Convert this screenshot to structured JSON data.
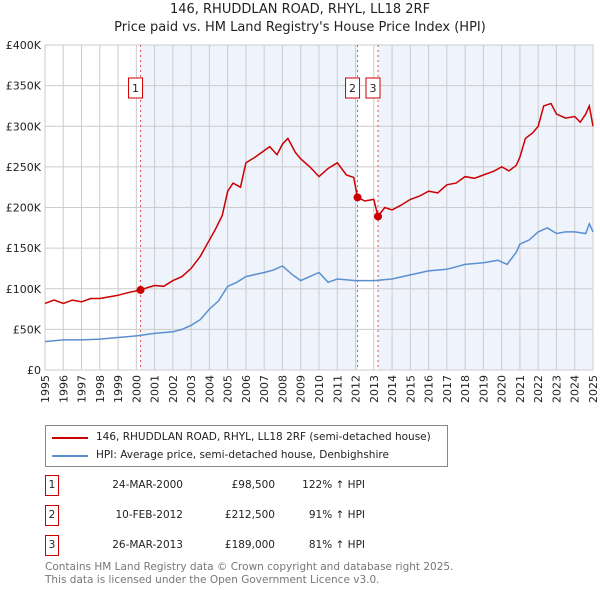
{
  "chart_data": {
    "type": "line",
    "title": "146, RHUDDLAN ROAD, RHYL, LL18 2RF",
    "subtitle": "Price paid vs. HM Land Registry's House Price Index (HPI)",
    "xlim": [
      1995,
      2025
    ],
    "ylim": [
      0,
      400000
    ],
    "x_ticks": [
      "1995",
      "1996",
      "1997",
      "1998",
      "1999",
      "2000",
      "2001",
      "2002",
      "2003",
      "2004",
      "2005",
      "2006",
      "2007",
      "2008",
      "2009",
      "2010",
      "2011",
      "2012",
      "2013",
      "2014",
      "2015",
      "2016",
      "2017",
      "2018",
      "2019",
      "2020",
      "2021",
      "2022",
      "2023",
      "2024",
      "2025"
    ],
    "y_ticks": [
      {
        "v": 0,
        "label": "£0"
      },
      {
        "v": 50000,
        "label": "£50K"
      },
      {
        "v": 100000,
        "label": "£100K"
      },
      {
        "v": 150000,
        "label": "£150K"
      },
      {
        "v": 200000,
        "label": "£200K"
      },
      {
        "v": 250000,
        "label": "£250K"
      },
      {
        "v": 300000,
        "label": "£300K"
      },
      {
        "v": 350000,
        "label": "£350K"
      },
      {
        "v": 400000,
        "label": "£400K"
      }
    ],
    "grid": true,
    "series": [
      {
        "name": "146, RHUDDLAN ROAD, RHYL, LL18 2RF (semi-detached house)",
        "color": "#cc0000",
        "x": [
          1995,
          1995.5,
          1996,
          1996.5,
          1997,
          1997.5,
          1998,
          1998.5,
          1999,
          1999.5,
          2000.23,
          2000.7,
          2001,
          2001.5,
          2002,
          2002.5,
          2003,
          2003.5,
          2004,
          2004.3,
          2004.7,
          2005,
          2005.3,
          2005.7,
          2006,
          2006.5,
          2007,
          2007.3,
          2007.7,
          2008,
          2008.3,
          2008.7,
          2009,
          2009.5,
          2010,
          2010.5,
          2011,
          2011.5,
          2011.9,
          2012.11,
          2012.5,
          2013,
          2013.23,
          2013.6,
          2014,
          2014.5,
          2015,
          2015.5,
          2016,
          2016.5,
          2017,
          2017.5,
          2018,
          2018.5,
          2019,
          2019.6,
          2020,
          2020.4,
          2020.8,
          2021,
          2021.3,
          2021.7,
          2022,
          2022.3,
          2022.7,
          2023,
          2023.5,
          2024,
          2024.3,
          2024.6,
          2024.8,
          2025
        ],
        "y": [
          82000,
          86000,
          82000,
          86000,
          84000,
          88000,
          88000,
          90000,
          92000,
          95000,
          98500,
          102000,
          104000,
          103000,
          110000,
          115000,
          125000,
          140000,
          160000,
          172000,
          190000,
          220000,
          230000,
          225000,
          255000,
          262000,
          270000,
          275000,
          265000,
          278000,
          285000,
          268000,
          260000,
          250000,
          238000,
          248000,
          255000,
          240000,
          237000,
          212500,
          208000,
          210000,
          189000,
          200000,
          197000,
          203000,
          210000,
          214000,
          220000,
          218000,
          228000,
          230000,
          238000,
          236000,
          240000,
          245000,
          250000,
          245000,
          252000,
          262000,
          285000,
          292000,
          300000,
          325000,
          328000,
          315000,
          310000,
          312000,
          305000,
          315000,
          325000,
          300000
        ]
      },
      {
        "name": "HPI: Average price, semi-detached house, Denbighshire",
        "color": "#5b8fd0",
        "x": [
          1995,
          1996,
          1997,
          1998,
          1999,
          2000,
          2001,
          2002,
          2002.5,
          2003,
          2003.5,
          2004,
          2004.5,
          2005,
          2005.5,
          2006,
          2007,
          2007.5,
          2008,
          2008.5,
          2009,
          2010,
          2010.5,
          2011,
          2012,
          2013,
          2014,
          2015,
          2016,
          2017,
          2018,
          2019,
          2019.8,
          2020.3,
          2020.8,
          2021,
          2021.5,
          2022,
          2022.5,
          2023,
          2023.5,
          2024,
          2024.6,
          2024.8,
          2025
        ],
        "y": [
          35000,
          37000,
          37000,
          38000,
          40000,
          42000,
          45000,
          47000,
          50000,
          55000,
          62000,
          75000,
          85000,
          103000,
          108000,
          115000,
          120000,
          123000,
          128000,
          118000,
          110000,
          120000,
          108000,
          112000,
          110000,
          110000,
          112000,
          117000,
          122000,
          124000,
          130000,
          132000,
          135000,
          130000,
          145000,
          155000,
          160000,
          170000,
          175000,
          168000,
          170000,
          170000,
          168000,
          180000,
          170000
        ]
      }
    ],
    "sales": [
      {
        "label": "1",
        "x": 2000.23,
        "price": 98500
      },
      {
        "label": "2",
        "x": 2012.11,
        "price": 212500
      },
      {
        "label": "3",
        "x": 2013.23,
        "price": 189000
      }
    ],
    "shaded_ranges": [
      [
        2000.23,
        2012.11
      ],
      [
        2013.23,
        2025
      ]
    ],
    "shade_color": "#eef3fc"
  },
  "table": [
    {
      "num": "1",
      "date": "24-MAR-2000",
      "price": "£98,500",
      "hpi": "122% ↑ HPI"
    },
    {
      "num": "2",
      "date": "10-FEB-2012",
      "price": "£212,500",
      "hpi": "91% ↑ HPI"
    },
    {
      "num": "3",
      "date": "26-MAR-2013",
      "price": "£189,000",
      "hpi": "81% ↑ HPI"
    }
  ],
  "footer": [
    "Contains HM Land Registry data © Crown copyright and database right 2025.",
    "This data is licensed under the Open Government Licence v3.0."
  ]
}
